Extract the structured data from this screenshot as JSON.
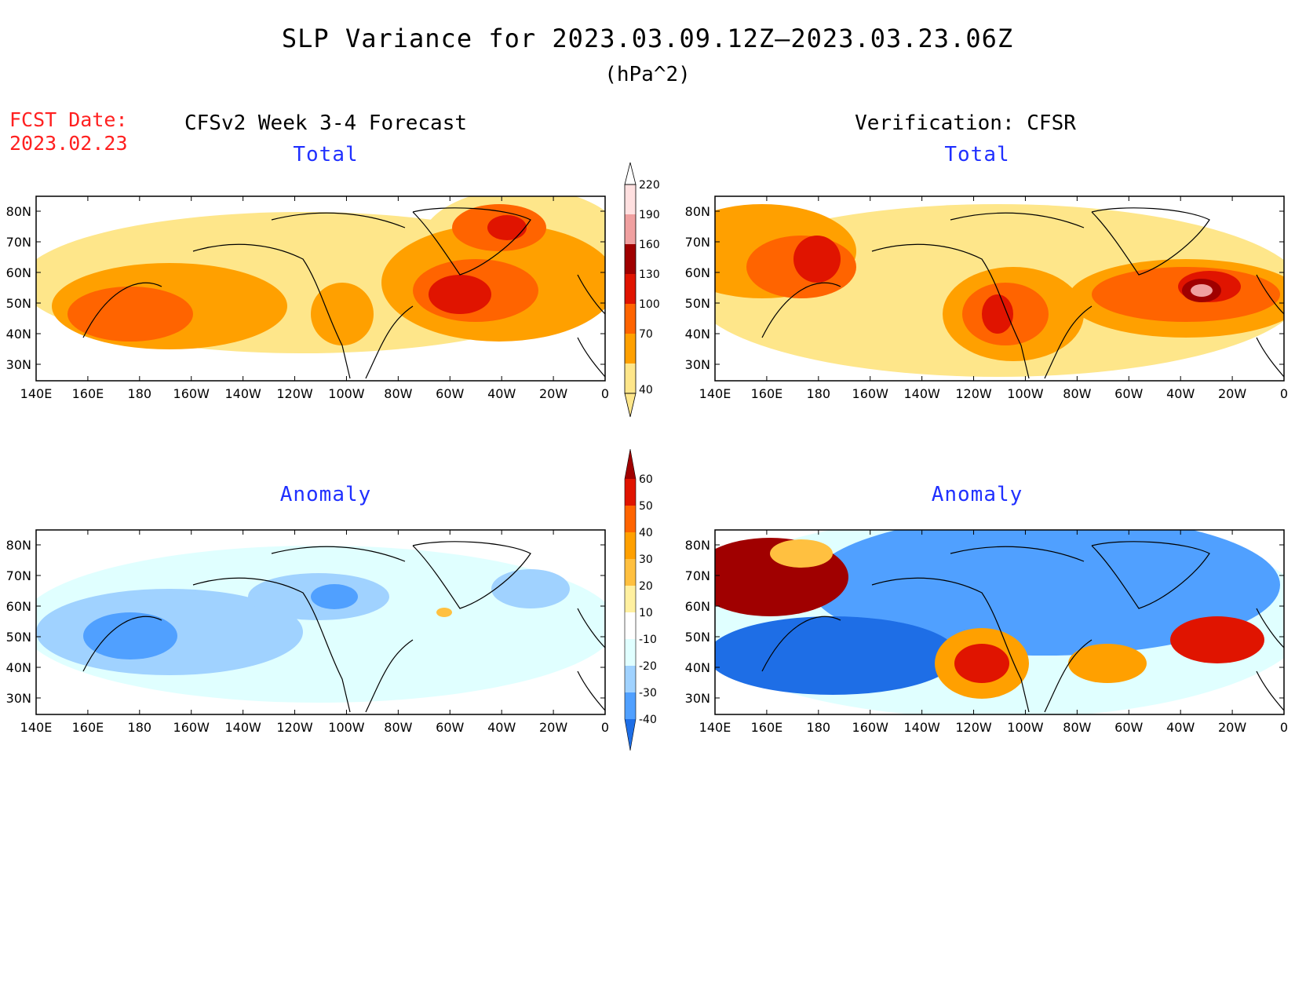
{
  "header": {
    "title": "SLP Variance for 2023.03.09.12Z—2023.03.23.06Z",
    "units": "(hPa^2)",
    "fcst_label": "FCST Date:",
    "fcst_date": "2023.02.23",
    "left_heading": "CFSv2 Week 3-4 Forecast",
    "right_heading": "Verification: CFSR"
  },
  "panels": {
    "top_left_title": "Total",
    "top_right_title": "Total",
    "bottom_left_title": "Anomaly",
    "bottom_right_title": "Anomaly"
  },
  "axes": {
    "lat_labels": [
      "80N",
      "70N",
      "60N",
      "50N",
      "40N",
      "30N"
    ],
    "lon_labels": [
      "140E",
      "160E",
      "180",
      "160W",
      "140W",
      "120W",
      "100W",
      "80W",
      "60W",
      "40W",
      "20W",
      "0"
    ]
  },
  "colorbar_total": {
    "levels": [
      "40",
      "70",
      "100",
      "130",
      "160",
      "190",
      "220"
    ],
    "colors": [
      "#fee68a",
      "#ffa000",
      "#ff6400",
      "#e01400",
      "#a00000",
      "#f0a0a0",
      "#ffe0e0"
    ]
  },
  "colorbar_anomaly": {
    "levels": [
      "60",
      "50",
      "40",
      "30",
      "20",
      "10",
      "-10",
      "-20",
      "-30",
      "-40"
    ],
    "colors": [
      "#a00000",
      "#e01400",
      "#ff6400",
      "#ffa000",
      "#ffc040",
      "#fff0a0",
      "#ffffff",
      "#e0ffff",
      "#a0d2ff",
      "#50a0ff",
      "#1e6ee6"
    ]
  }
}
